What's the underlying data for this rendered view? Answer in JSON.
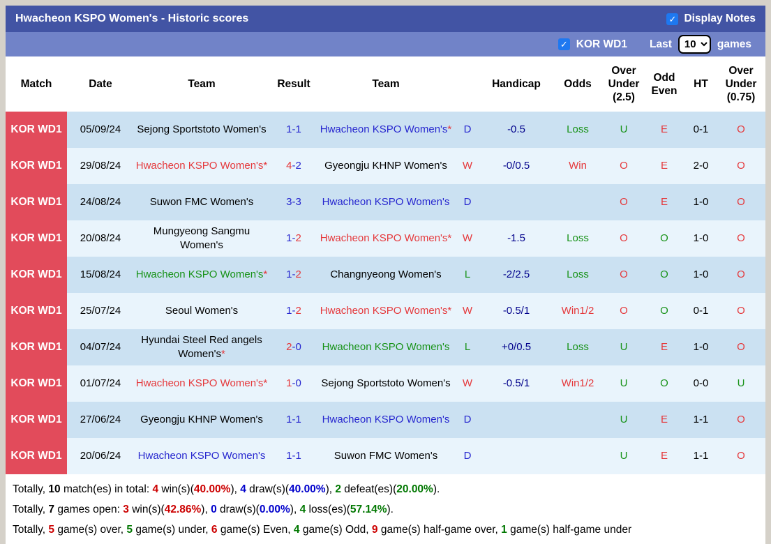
{
  "header": {
    "title": "Hwacheon KSPO Women's - Historic scores",
    "display_notes": {
      "label": "Display Notes",
      "checked": true,
      "check_glyph": "✓"
    },
    "league_filter": {
      "label": "KOR WD1",
      "checked": true
    },
    "last_games": {
      "prefix": "Last",
      "value": "10",
      "suffix": "games"
    }
  },
  "colors": {
    "topbar": "#4254a4",
    "subbar": "#7183c8",
    "league_cell": "#e24b5b",
    "row_odd": "#cbe1f2",
    "row_even": "#e9f4fc",
    "win_red": "#e5383b",
    "draw_blue": "#2727cf",
    "loss_green": "#179217",
    "handicap_navy": "#00008b",
    "checkbox_blue": "#1e78f0"
  },
  "table": {
    "columns": [
      "Match",
      "Date",
      "Team",
      "Result",
      "Team",
      "",
      "Handicap",
      "Odds",
      "Over Under (2.5)",
      "Odd Even",
      "HT",
      "Over Under (0.75)"
    ],
    "rows": [
      {
        "league": "KOR WD1",
        "date": "05/09/24",
        "home": {
          "name": "Sejong Sportstoto Women's",
          "color": "black",
          "star": false
        },
        "score": {
          "home": "1",
          "away": "1",
          "home_color": "blue",
          "away_color": "blue"
        },
        "away": {
          "name": "Hwacheon KSPO Women's",
          "color": "blue",
          "star": true
        },
        "wdl": {
          "text": "D",
          "color": "blue"
        },
        "handicap": "-0.5",
        "odds": {
          "text": "Loss",
          "color": "green"
        },
        "ou25": {
          "text": "U",
          "color": "green"
        },
        "odd_even": {
          "text": "E",
          "color": "red"
        },
        "ht": "0-1",
        "ou075": {
          "text": "O",
          "color": "red"
        }
      },
      {
        "league": "KOR WD1",
        "date": "29/08/24",
        "home": {
          "name": "Hwacheon KSPO Women's",
          "color": "red",
          "star": true
        },
        "score": {
          "home": "4",
          "away": "2",
          "home_color": "red",
          "away_color": "blue"
        },
        "away": {
          "name": "Gyeongju KHNP Women's",
          "color": "black",
          "star": false
        },
        "wdl": {
          "text": "W",
          "color": "red"
        },
        "handicap": "-0/0.5",
        "odds": {
          "text": "Win",
          "color": "red"
        },
        "ou25": {
          "text": "O",
          "color": "red"
        },
        "odd_even": {
          "text": "E",
          "color": "red"
        },
        "ht": "2-0",
        "ou075": {
          "text": "O",
          "color": "red"
        }
      },
      {
        "league": "KOR WD1",
        "date": "24/08/24",
        "home": {
          "name": "Suwon FMC Women's",
          "color": "black",
          "star": false
        },
        "score": {
          "home": "3",
          "away": "3",
          "home_color": "blue",
          "away_color": "blue"
        },
        "away": {
          "name": "Hwacheon KSPO Women's",
          "color": "blue",
          "star": false
        },
        "wdl": {
          "text": "D",
          "color": "blue"
        },
        "handicap": "",
        "odds": {
          "text": "",
          "color": "black"
        },
        "ou25": {
          "text": "O",
          "color": "red"
        },
        "odd_even": {
          "text": "E",
          "color": "red"
        },
        "ht": "1-0",
        "ou075": {
          "text": "O",
          "color": "red"
        }
      },
      {
        "league": "KOR WD1",
        "date": "20/08/24",
        "home": {
          "name": "Mungyeong Sangmu Women's",
          "color": "black",
          "star": false
        },
        "score": {
          "home": "1",
          "away": "2",
          "home_color": "blue",
          "away_color": "red"
        },
        "away": {
          "name": "Hwacheon KSPO Women's",
          "color": "red",
          "star": true
        },
        "wdl": {
          "text": "W",
          "color": "red"
        },
        "handicap": "-1.5",
        "odds": {
          "text": "Loss",
          "color": "green"
        },
        "ou25": {
          "text": "O",
          "color": "red"
        },
        "odd_even": {
          "text": "O",
          "color": "green"
        },
        "ht": "1-0",
        "ou075": {
          "text": "O",
          "color": "red"
        }
      },
      {
        "league": "KOR WD1",
        "date": "15/08/24",
        "home": {
          "name": "Hwacheon KSPO Women's",
          "color": "green",
          "star": true
        },
        "score": {
          "home": "1",
          "away": "2",
          "home_color": "blue",
          "away_color": "red"
        },
        "away": {
          "name": "Changnyeong Women's",
          "color": "black",
          "star": false
        },
        "wdl": {
          "text": "L",
          "color": "green"
        },
        "handicap": "-2/2.5",
        "odds": {
          "text": "Loss",
          "color": "green"
        },
        "ou25": {
          "text": "O",
          "color": "red"
        },
        "odd_even": {
          "text": "O",
          "color": "green"
        },
        "ht": "1-0",
        "ou075": {
          "text": "O",
          "color": "red"
        }
      },
      {
        "league": "KOR WD1",
        "date": "25/07/24",
        "home": {
          "name": "Seoul Women's",
          "color": "black",
          "star": false
        },
        "score": {
          "home": "1",
          "away": "2",
          "home_color": "blue",
          "away_color": "red"
        },
        "away": {
          "name": "Hwacheon KSPO Women's",
          "color": "red",
          "star": true
        },
        "wdl": {
          "text": "W",
          "color": "red"
        },
        "handicap": "-0.5/1",
        "odds": {
          "text": "Win1/2",
          "color": "red"
        },
        "ou25": {
          "text": "O",
          "color": "red"
        },
        "odd_even": {
          "text": "O",
          "color": "green"
        },
        "ht": "0-1",
        "ou075": {
          "text": "O",
          "color": "red"
        }
      },
      {
        "league": "KOR WD1",
        "date": "04/07/24",
        "home": {
          "name": "Hyundai Steel Red angels Women's",
          "color": "black",
          "star": true
        },
        "score": {
          "home": "2",
          "away": "0",
          "home_color": "red",
          "away_color": "blue"
        },
        "away": {
          "name": "Hwacheon KSPO Women's",
          "color": "green",
          "star": false
        },
        "wdl": {
          "text": "L",
          "color": "green"
        },
        "handicap": "+0/0.5",
        "odds": {
          "text": "Loss",
          "color": "green"
        },
        "ou25": {
          "text": "U",
          "color": "green"
        },
        "odd_even": {
          "text": "E",
          "color": "red"
        },
        "ht": "1-0",
        "ou075": {
          "text": "O",
          "color": "red"
        }
      },
      {
        "league": "KOR WD1",
        "date": "01/07/24",
        "home": {
          "name": "Hwacheon KSPO Women's",
          "color": "red",
          "star": true
        },
        "score": {
          "home": "1",
          "away": "0",
          "home_color": "red",
          "away_color": "blue"
        },
        "away": {
          "name": "Sejong Sportstoto Women's",
          "color": "black",
          "star": false
        },
        "wdl": {
          "text": "W",
          "color": "red"
        },
        "handicap": "-0.5/1",
        "odds": {
          "text": "Win1/2",
          "color": "red"
        },
        "ou25": {
          "text": "U",
          "color": "green"
        },
        "odd_even": {
          "text": "O",
          "color": "green"
        },
        "ht": "0-0",
        "ou075": {
          "text": "U",
          "color": "green"
        }
      },
      {
        "league": "KOR WD1",
        "date": "27/06/24",
        "home": {
          "name": "Gyeongju KHNP Women's",
          "color": "black",
          "star": false
        },
        "score": {
          "home": "1",
          "away": "1",
          "home_color": "blue",
          "away_color": "blue"
        },
        "away": {
          "name": "Hwacheon KSPO Women's",
          "color": "blue",
          "star": false
        },
        "wdl": {
          "text": "D",
          "color": "blue"
        },
        "handicap": "",
        "odds": {
          "text": "",
          "color": "black"
        },
        "ou25": {
          "text": "U",
          "color": "green"
        },
        "odd_even": {
          "text": "E",
          "color": "red"
        },
        "ht": "1-1",
        "ou075": {
          "text": "O",
          "color": "red"
        }
      },
      {
        "league": "KOR WD1",
        "date": "20/06/24",
        "home": {
          "name": "Hwacheon KSPO Women's",
          "color": "blue",
          "star": false
        },
        "score": {
          "home": "1",
          "away": "1",
          "home_color": "blue",
          "away_color": "blue"
        },
        "away": {
          "name": "Suwon FMC Women's",
          "color": "black",
          "star": false
        },
        "wdl": {
          "text": "D",
          "color": "blue"
        },
        "handicap": "",
        "odds": {
          "text": "",
          "color": "black"
        },
        "ou25": {
          "text": "U",
          "color": "green"
        },
        "odd_even": {
          "text": "E",
          "color": "red"
        },
        "ht": "1-1",
        "ou075": {
          "text": "O",
          "color": "red"
        }
      }
    ]
  },
  "summary": {
    "lines": [
      [
        {
          "t": "Totally, ",
          "c": "black",
          "b": false
        },
        {
          "t": "10",
          "c": "black",
          "b": true
        },
        {
          "t": " match(es) in total: ",
          "c": "black",
          "b": false
        },
        {
          "t": "4",
          "c": "red",
          "b": true
        },
        {
          "t": " win(s)(",
          "c": "black",
          "b": false
        },
        {
          "t": "40.00%",
          "c": "red",
          "b": true
        },
        {
          "t": "), ",
          "c": "black",
          "b": false
        },
        {
          "t": "4",
          "c": "blue",
          "b": true
        },
        {
          "t": " draw(s)(",
          "c": "black",
          "b": false
        },
        {
          "t": "40.00%",
          "c": "blue",
          "b": true
        },
        {
          "t": "), ",
          "c": "black",
          "b": false
        },
        {
          "t": "2",
          "c": "green",
          "b": true
        },
        {
          "t": " defeat(es)(",
          "c": "black",
          "b": false
        },
        {
          "t": "20.00%",
          "c": "green",
          "b": true
        },
        {
          "t": ").",
          "c": "black",
          "b": false
        }
      ],
      [
        {
          "t": "Totally, ",
          "c": "black",
          "b": false
        },
        {
          "t": "7",
          "c": "black",
          "b": true
        },
        {
          "t": " games open: ",
          "c": "black",
          "b": false
        },
        {
          "t": "3",
          "c": "red",
          "b": true
        },
        {
          "t": " win(s)(",
          "c": "black",
          "b": false
        },
        {
          "t": "42.86%",
          "c": "red",
          "b": true
        },
        {
          "t": "), ",
          "c": "black",
          "b": false
        },
        {
          "t": "0",
          "c": "blue",
          "b": true
        },
        {
          "t": " draw(s)(",
          "c": "black",
          "b": false
        },
        {
          "t": "0.00%",
          "c": "blue",
          "b": true
        },
        {
          "t": "), ",
          "c": "black",
          "b": false
        },
        {
          "t": "4",
          "c": "green",
          "b": true
        },
        {
          "t": " loss(es)(",
          "c": "black",
          "b": false
        },
        {
          "t": "57.14%",
          "c": "green",
          "b": true
        },
        {
          "t": ").",
          "c": "black",
          "b": false
        }
      ],
      [
        {
          "t": "Totally, ",
          "c": "black",
          "b": false
        },
        {
          "t": "5",
          "c": "red",
          "b": true
        },
        {
          "t": " game(s) over, ",
          "c": "black",
          "b": false
        },
        {
          "t": "5",
          "c": "green",
          "b": true
        },
        {
          "t": " game(s) under, ",
          "c": "black",
          "b": false
        },
        {
          "t": "6",
          "c": "red",
          "b": true
        },
        {
          "t": " game(s) Even, ",
          "c": "black",
          "b": false
        },
        {
          "t": "4",
          "c": "green",
          "b": true
        },
        {
          "t": " game(s) Odd, ",
          "c": "black",
          "b": false
        },
        {
          "t": "9",
          "c": "red",
          "b": true
        },
        {
          "t": " game(s) half-game over, ",
          "c": "black",
          "b": false
        },
        {
          "t": "1",
          "c": "green",
          "b": true
        },
        {
          "t": " game(s) half-game under",
          "c": "black",
          "b": false
        }
      ]
    ]
  }
}
